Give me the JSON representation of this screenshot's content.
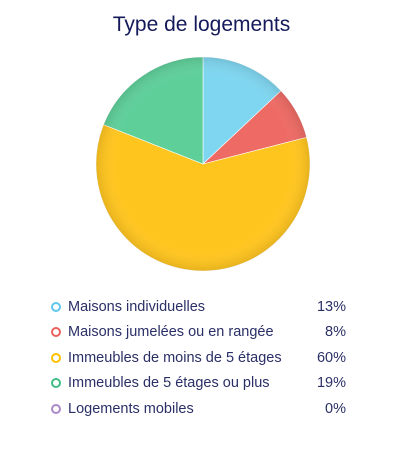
{
  "chart_data": {
    "type": "pie",
    "title": "Type de logements",
    "categories": [
      "Maisons individuelles",
      "Maisons jumelées ou en rangée",
      "Immeubles de moins de 5 étages",
      "Immeubles de 5 étages ou plus",
      "Logements mobiles"
    ],
    "values": [
      13,
      8,
      60,
      19,
      0
    ],
    "value_labels": [
      "13%",
      "8%",
      "60%",
      "19%",
      "0%"
    ],
    "unit": "%",
    "colors": [
      "#7fd6f0",
      "#ee6b65",
      "#ffc51f",
      "#5fcf9a",
      "#b18ccf"
    ],
    "legend_colors": [
      "#5fc8ea",
      "#e9625c",
      "#ffc000",
      "#3fbf84",
      "#ab89c8"
    ],
    "legend_position": "bottom"
  }
}
